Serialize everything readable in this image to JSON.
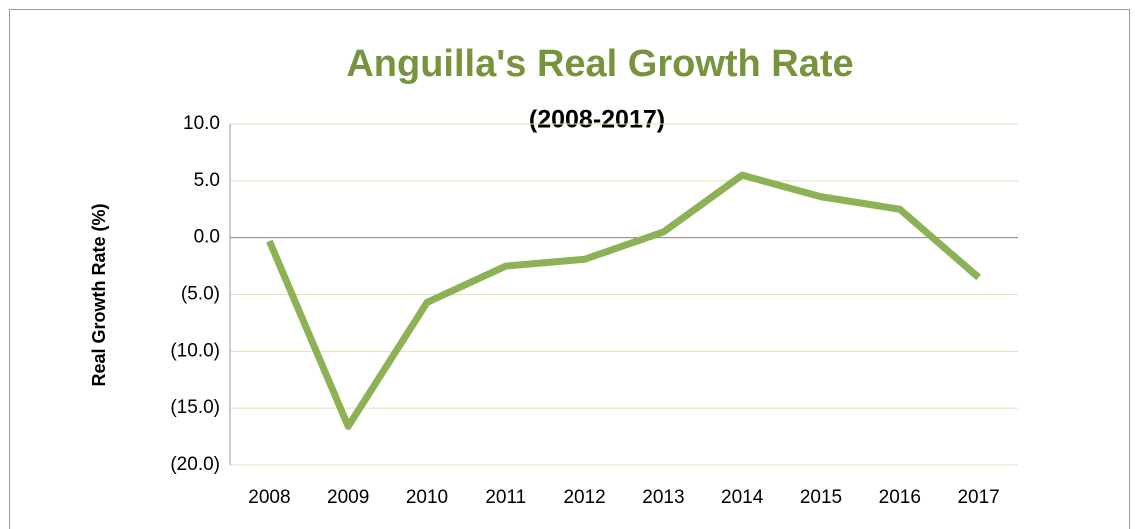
{
  "chart_data": {
    "type": "line",
    "title": "Anguilla's Real Growth Rate",
    "subtitle": "(2008-2017)",
    "y_label": "Real Growth Rate (%)",
    "categories": [
      "2008",
      "2009",
      "2010",
      "2011",
      "2012",
      "2013",
      "2014",
      "2015",
      "2016",
      "2017"
    ],
    "values": [
      -0.3,
      -16.6,
      -5.7,
      -2.5,
      -1.9,
      0.5,
      5.5,
      3.6,
      2.5,
      -3.5
    ],
    "color": "#8db255",
    "ylim": [
      -20,
      10
    ],
    "yticks": [
      {
        "value": -20,
        "label": "(20.0)"
      },
      {
        "value": -15,
        "label": "(15.0)"
      },
      {
        "value": -10,
        "label": "(10.0)"
      },
      {
        "value": -5,
        "label": "(5.0)"
      },
      {
        "value": 0,
        "label": "0.0"
      },
      {
        "value": 5,
        "label": "5.0"
      },
      {
        "value": 10,
        "label": "10.0"
      }
    ],
    "grid": true
  }
}
